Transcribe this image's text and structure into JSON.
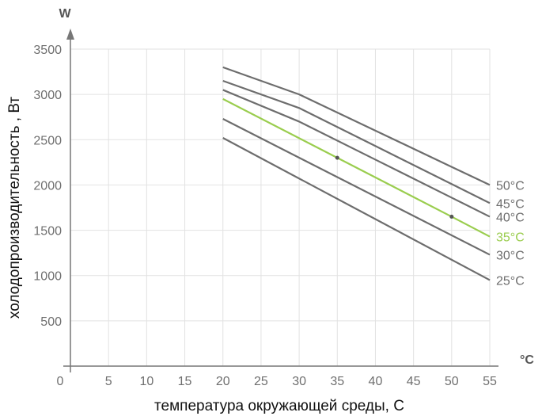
{
  "chart_data": {
    "type": "line",
    "ylabel": "холодопроизводительность  , Вт",
    "xlabel": "температура окружающей среды, С",
    "y_unit": "W",
    "x_unit": "°C",
    "xlim": [
      0,
      55
    ],
    "ylim": [
      0,
      3500
    ],
    "x_ticks": [
      0,
      5,
      10,
      15,
      20,
      25,
      30,
      35,
      40,
      45,
      50,
      55
    ],
    "y_ticks": [
      500,
      1000,
      1500,
      2000,
      2500,
      3000,
      3500
    ],
    "grid": true,
    "series": [
      {
        "name": "50°C",
        "color": "#6d6d6d",
        "x": [
          20,
          30,
          40,
          50,
          55
        ],
        "y": [
          3300,
          3000,
          2600,
          2200,
          2000
        ]
      },
      {
        "name": "45°C",
        "color": "#6d6d6d",
        "x": [
          20,
          30,
          40,
          50,
          55
        ],
        "y": [
          3150,
          2850,
          2430,
          2010,
          1800
        ]
      },
      {
        "name": "40°C",
        "color": "#6d6d6d",
        "x": [
          20,
          30,
          40,
          50,
          55
        ],
        "y": [
          3050,
          2700,
          2280,
          1860,
          1650
        ]
      },
      {
        "name": "35°C",
        "color": "#9acd4e",
        "x": [
          20,
          35,
          50,
          55
        ],
        "y": [
          2950,
          2300,
          1650,
          1430
        ],
        "markers_x": [
          35,
          50
        ]
      },
      {
        "name": "30°C",
        "color": "#6d6d6d",
        "x": [
          20,
          55
        ],
        "y": [
          2730,
          1230
        ]
      },
      {
        "name": "25°C",
        "color": "#6d6d6d",
        "x": [
          20,
          55
        ],
        "y": [
          2520,
          950
        ]
      }
    ]
  }
}
